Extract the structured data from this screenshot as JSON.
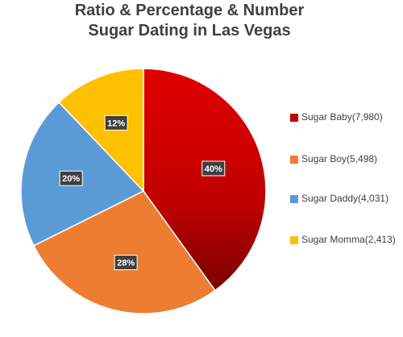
{
  "chart_data": {
    "type": "pie",
    "title": [
      "Ratio & Percentage & Number",
      "Sugar Dating in Las Vegas"
    ],
    "legend_position": "right",
    "slices": [
      {
        "label": "Sugar Baby(7,980)",
        "value": 7980,
        "percent_label": "40%",
        "color": "#C00000"
      },
      {
        "label": "Sugar Boy(5,498)",
        "value": 5498,
        "percent_label": "28%",
        "color": "#ED7D31"
      },
      {
        "label": "Sugar Daddy(4,031)",
        "value": 4031,
        "percent_label": "20%",
        "color": "#5B9BD5"
      },
      {
        "label": "Sugar Momma(2,413)",
        "value": 2413,
        "percent_label": "12%",
        "color": "#FFC000"
      }
    ]
  }
}
